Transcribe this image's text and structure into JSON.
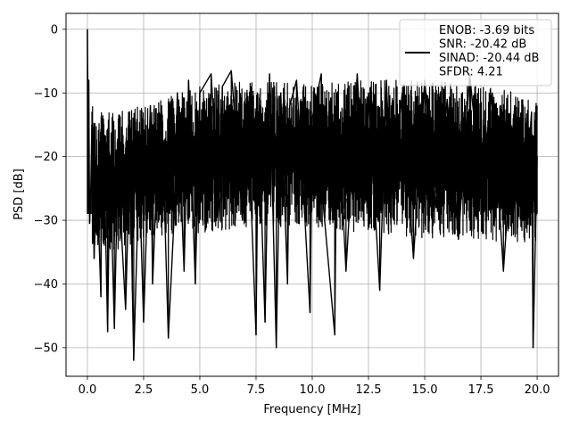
{
  "chart_data": {
    "type": "line",
    "title": "",
    "xlabel": "Frequency [MHz]",
    "ylabel": "PSD [dB]",
    "xlim": [
      -0.95,
      20.95
    ],
    "ylim": [
      -54.5,
      2.5
    ],
    "x_ticks": [
      0.0,
      2.5,
      5.0,
      7.5,
      10.0,
      12.5,
      15.0,
      17.5,
      20.0
    ],
    "x_tick_labels": [
      "0.0",
      "2.5",
      "5.0",
      "7.5",
      "10.0",
      "12.5",
      "15.0",
      "17.5",
      "20.0"
    ],
    "y_ticks": [
      0,
      -10,
      -20,
      -30,
      -40,
      -50
    ],
    "y_tick_labels": [
      "0",
      "−10",
      "−20",
      "−30",
      "−40",
      "−50"
    ],
    "grid": true,
    "legend_position": "top-right",
    "series": [
      {
        "name": "ENOB: -3.69 bits\nSNR: -20.42 dB\nSINAD: -20.44 dB\nSFDR: 4.21",
        "color": "#000000",
        "x": [
          0.0,
          0.03,
          0.06,
          0.1,
          0.15,
          0.2,
          0.3,
          0.4,
          0.5,
          0.6,
          0.65,
          0.8,
          0.9,
          1.0,
          1.2,
          1.4,
          1.5,
          1.7,
          1.9,
          2.0,
          2.06,
          2.3,
          2.5,
          2.8,
          2.9,
          3.1,
          3.3,
          3.6,
          3.85,
          4.0,
          4.3,
          4.5,
          4.8,
          5.0,
          5.5,
          5.9,
          6.0,
          6.4,
          6.9,
          7.1,
          7.5,
          7.6,
          7.9,
          8.1,
          8.4,
          8.6,
          8.9,
          9.0,
          9.3,
          9.6,
          9.9,
          10.0,
          10.4,
          10.5,
          11.0,
          11.1,
          11.5,
          12.0,
          12.3,
          12.5,
          13.0,
          13.3,
          13.5,
          14.0,
          14.5,
          15.0,
          15.5,
          16.0,
          16.5,
          17.0,
          17.5,
          18.0,
          18.5,
          19.0,
          19.5,
          19.75,
          19.82,
          20.0
        ],
        "y": [
          0.0,
          -14.0,
          -8.0,
          -30.5,
          -25.0,
          -15.0,
          -36.0,
          -20.0,
          -31.0,
          -42.0,
          -14.0,
          -30.0,
          -47.5,
          -20.0,
          -47.0,
          -13.5,
          -31.0,
          -44.0,
          -18.0,
          -41.0,
          -52.0,
          -22.0,
          -46.0,
          -12.0,
          -40.0,
          -22.0,
          -12.0,
          -48.5,
          -30.0,
          -10.0,
          -38.0,
          -8.0,
          -40.0,
          -10.0,
          -7.0,
          -30.0,
          -9.0,
          -6.5,
          -30.0,
          -10.0,
          -48.0,
          -13.0,
          -46.0,
          -7.0,
          -50.0,
          -10.0,
          -40.0,
          -12.0,
          -8.0,
          -25.0,
          -44.5,
          -14.0,
          -7.0,
          -28.0,
          -48.0,
          -10.0,
          -38.0,
          -7.0,
          -26.0,
          -10.0,
          -41.0,
          -8.0,
          -27.0,
          -10.0,
          -36.0,
          -8.0,
          -28.0,
          -11.0,
          -33.0,
          -7.0,
          -25.0,
          -10.0,
          -38.0,
          -12.0,
          -26.0,
          -13.0,
          -50.0,
          -20.0
        ],
        "band": {
          "x": [
            0.2,
            1.0,
            2.5,
            5.0,
            7.5,
            10.0,
            12.5,
            15.0,
            17.5,
            20.0
          ],
          "upper": [
            -12.0,
            -13.0,
            -12.0,
            -9.0,
            -8.0,
            -8.5,
            -8.0,
            -8.0,
            -8.5,
            -11.0
          ],
          "lower": [
            -34.0,
            -35.0,
            -33.0,
            -32.0,
            -31.0,
            -31.0,
            -32.0,
            -33.0,
            -33.0,
            -34.0
          ]
        }
      }
    ]
  }
}
